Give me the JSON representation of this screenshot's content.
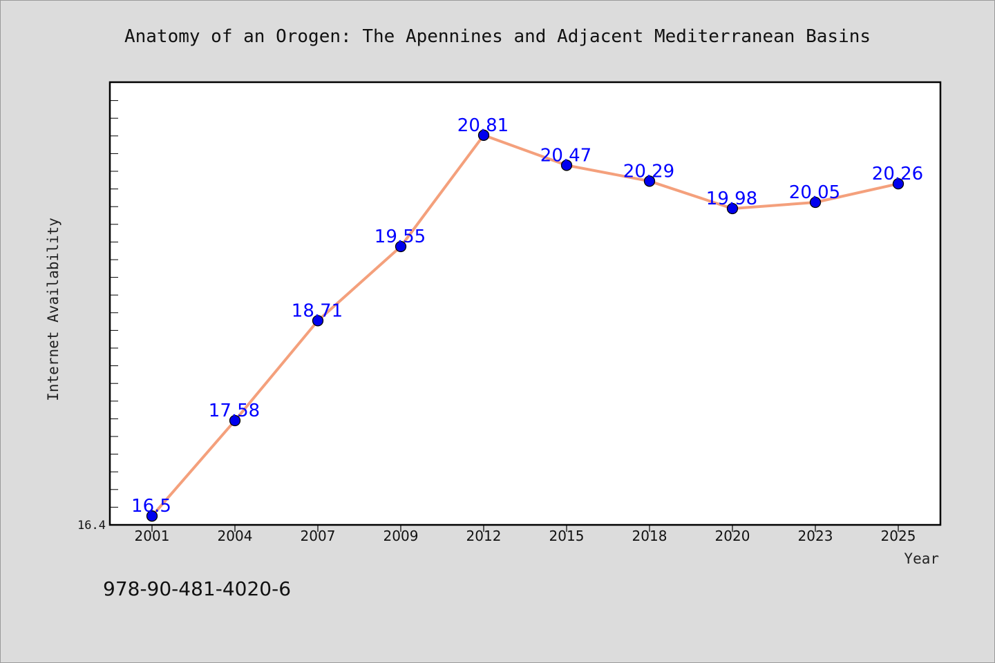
{
  "chart_data": {
    "type": "line",
    "title": "Anatomy of an Orogen: The Apennines and Adjacent Mediterranean Basins",
    "xlabel": "Year",
    "ylabel": "Internet Availability",
    "categories": [
      "2001",
      "2004",
      "2007",
      "2009",
      "2012",
      "2015",
      "2018",
      "2020",
      "2023",
      "2025"
    ],
    "series": [
      {
        "values": [
          16.5,
          17.58,
          18.71,
          19.55,
          20.81,
          20.47,
          20.29,
          19.98,
          20.05,
          20.26
        ]
      }
    ],
    "data_labels": [
      "16.5",
      "17.58",
      "18.71",
      "19.55",
      "20.81",
      "20.47",
      "20.29",
      "19.98",
      "20.05",
      "20.26"
    ],
    "y_tick_labels": [
      "16.4"
    ],
    "ylim": [
      16.4,
      21.41
    ],
    "grid": false,
    "line_color": "#f4a07c",
    "marker_color": "#0000ee",
    "label_color": "#0000ff"
  },
  "footer": {
    "isbn": "978-90-481-4020-6"
  }
}
